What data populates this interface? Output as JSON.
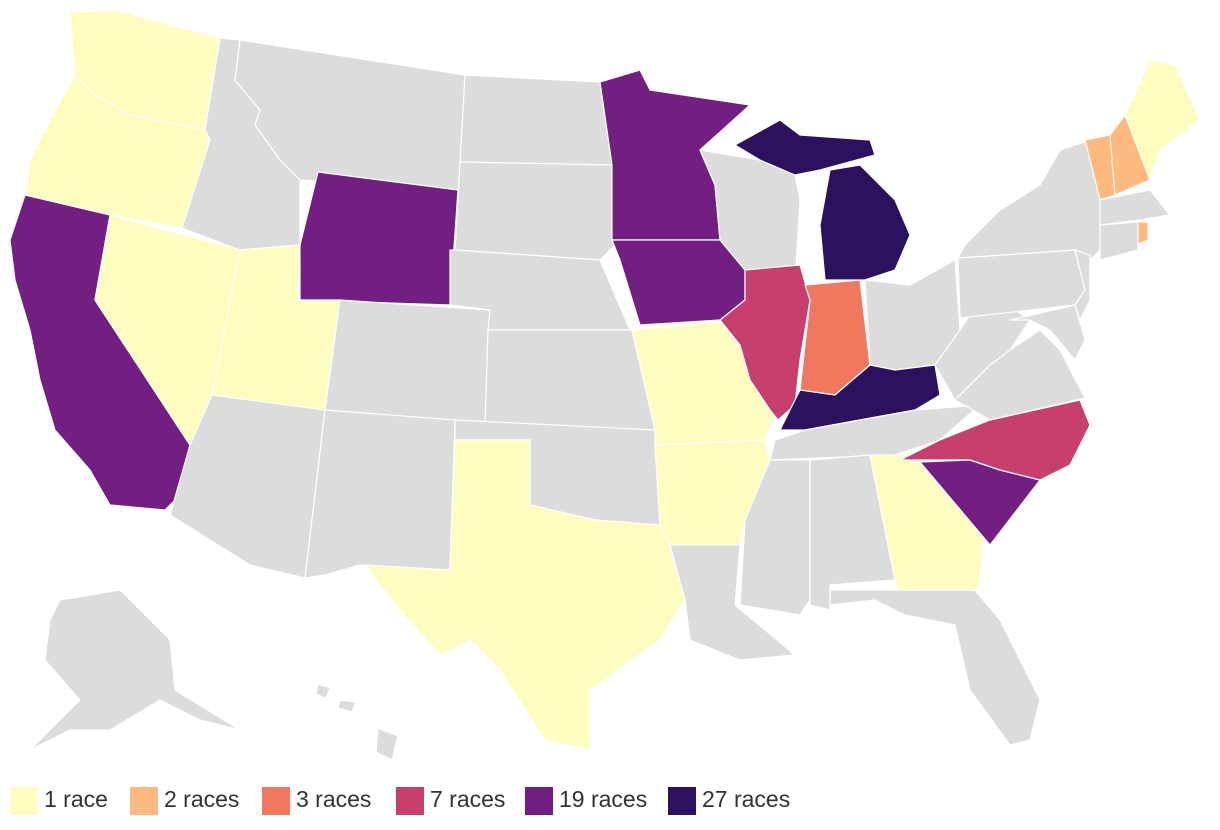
{
  "legend": {
    "items": [
      {
        "label": "1 race",
        "value": 1,
        "color": "#fcfdbf"
      },
      {
        "label": "2 races",
        "value": 2,
        "color": "#feb97f"
      },
      {
        "label": "3 races",
        "value": 3,
        "color": "#f1785f"
      },
      {
        "label": "7 races",
        "value": 7,
        "color": "#c63f6e"
      },
      {
        "label": "19 races",
        "value": 19,
        "color": "#721f81"
      },
      {
        "label": "27 races",
        "value": 27,
        "color": "#2c115f"
      }
    ],
    "empty_color": "#dcdcdc"
  }
}
